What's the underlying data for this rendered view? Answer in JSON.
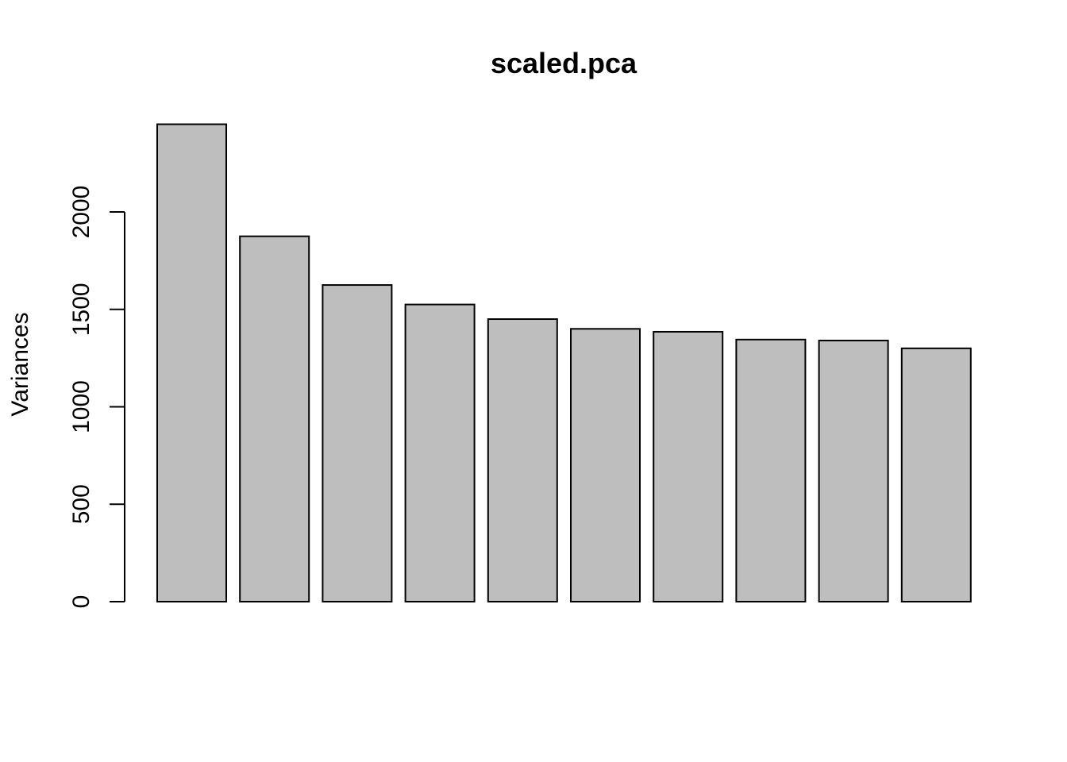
{
  "chart_data": {
    "type": "bar",
    "title": "scaled.pca",
    "xlabel": "",
    "ylabel": "Variances",
    "categories": [
      "",
      "",
      "",
      "",
      "",
      "",
      "",
      "",
      "",
      ""
    ],
    "values": [
      2450,
      1875,
      1625,
      1525,
      1450,
      1400,
      1385,
      1345,
      1340,
      1300
    ],
    "ylim": [
      0,
      2450
    ],
    "yticks": [
      0,
      500,
      1000,
      1500,
      2000
    ],
    "ytick_labels": [
      "0",
      "500",
      "1000",
      "1500",
      "2000"
    ],
    "grid": false,
    "legend": "none",
    "bar_color": "#bebebe",
    "edge_color": "#000000"
  }
}
